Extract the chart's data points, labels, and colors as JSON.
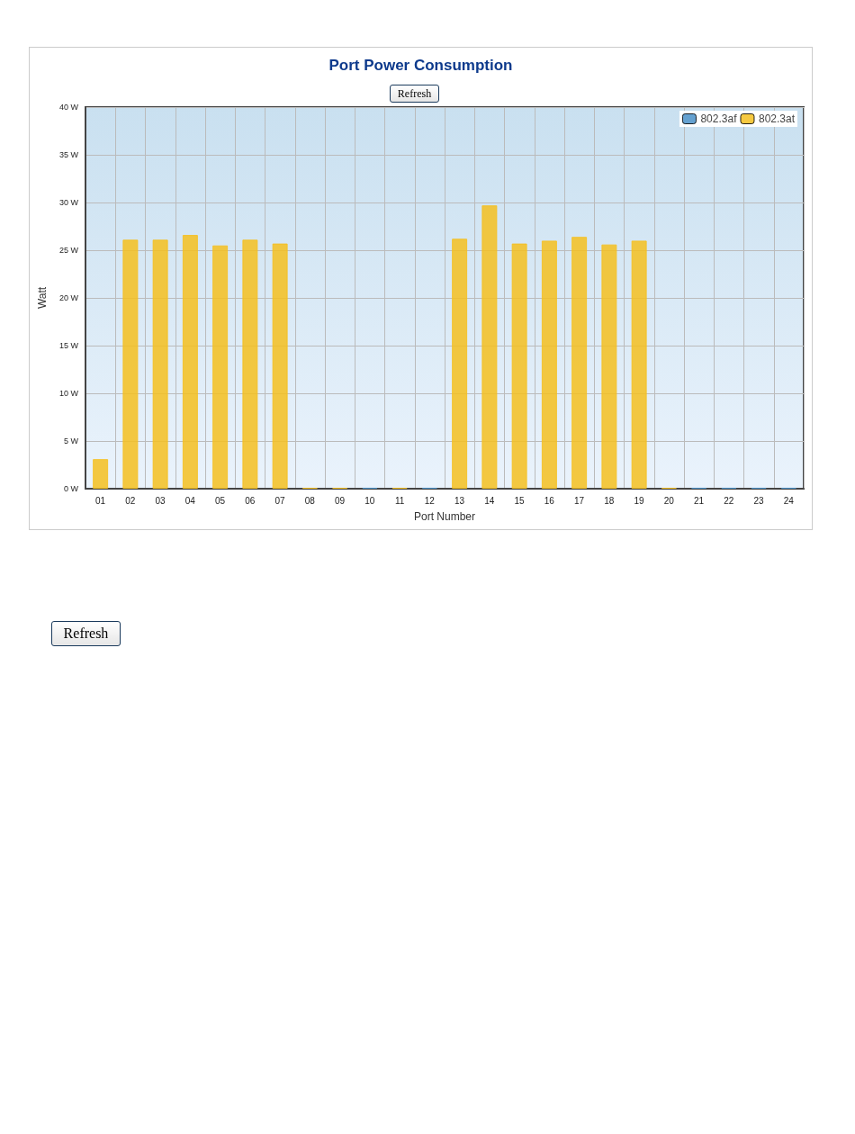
{
  "chart_data": {
    "type": "bar",
    "title": "Port Power Consumption",
    "xlabel": "Port Number",
    "ylabel": "Watt",
    "categories": [
      "01",
      "02",
      "03",
      "04",
      "05",
      "06",
      "07",
      "08",
      "09",
      "10",
      "11",
      "12",
      "13",
      "14",
      "15",
      "16",
      "17",
      "18",
      "19",
      "20",
      "21",
      "22",
      "23",
      "24"
    ],
    "series": [
      {
        "name": "802.3af",
        "color": "#4a90c8",
        "values": [
          null,
          null,
          null,
          null,
          null,
          null,
          null,
          null,
          null,
          0.1,
          null,
          0.1,
          null,
          null,
          null,
          null,
          null,
          null,
          null,
          null,
          0.1,
          0.1,
          0.1,
          0.1
        ]
      },
      {
        "name": "802.3at",
        "color": "#f5c020",
        "values": [
          3.1,
          26.1,
          26.1,
          26.6,
          25.5,
          26.1,
          25.7,
          0.1,
          0.1,
          null,
          0.1,
          null,
          26.2,
          29.7,
          25.7,
          26.0,
          26.4,
          25.6,
          26.0,
          0.1,
          null,
          null,
          null,
          null
        ]
      }
    ],
    "ylim": [
      0,
      40
    ],
    "yticks": [
      {
        "value": 0,
        "label": "0 W"
      },
      {
        "value": 5,
        "label": "5 W"
      },
      {
        "value": 10,
        "label": "10 W"
      },
      {
        "value": 15,
        "label": "15 W"
      },
      {
        "value": 20,
        "label": "20 W"
      },
      {
        "value": 25,
        "label": "25 W"
      },
      {
        "value": 30,
        "label": "30 W"
      },
      {
        "value": 35,
        "label": "35 W"
      },
      {
        "value": 40,
        "label": "40 W"
      }
    ],
    "grid": true,
    "legend": "top right",
    "annotations": [
      "Refresh",
      "Refresh"
    ]
  }
}
